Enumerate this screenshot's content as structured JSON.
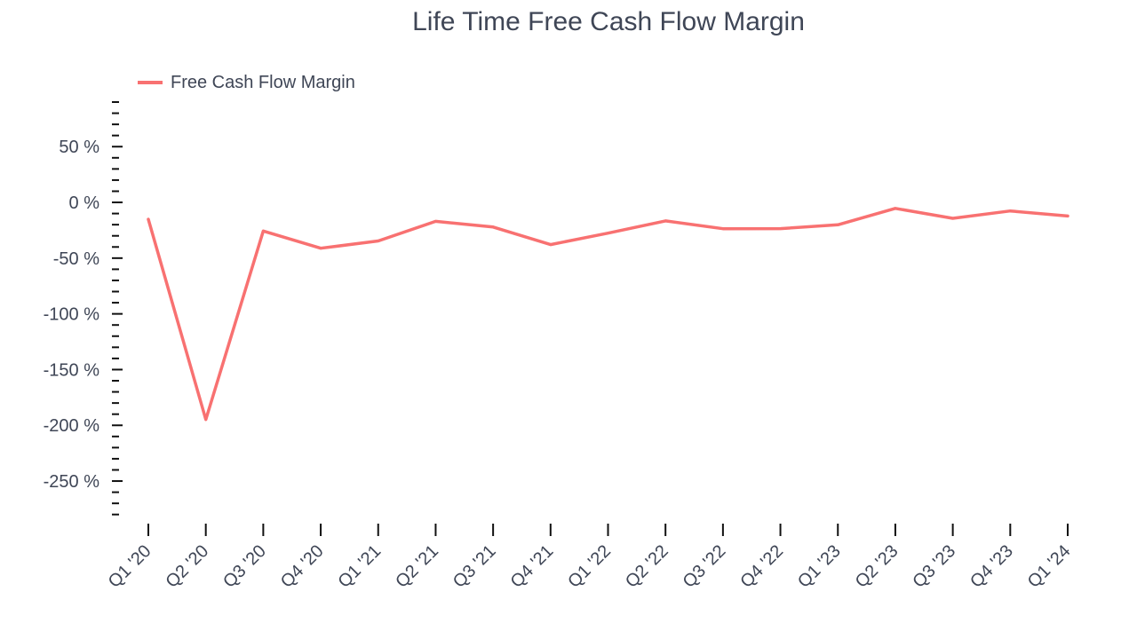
{
  "chart_data": {
    "type": "line",
    "title": "Life Time Free Cash Flow Margin",
    "xlabel": "",
    "ylabel": "",
    "categories": [
      "Q1 '20",
      "Q2 '20",
      "Q3 '20",
      "Q4 '20",
      "Q1 '21",
      "Q2 '21",
      "Q3 '21",
      "Q4 '21",
      "Q1 '22",
      "Q2 '22",
      "Q3 '22",
      "Q4 '22",
      "Q1 '23",
      "Q2 '23",
      "Q3 '23",
      "Q4 '23",
      "Q1 '24"
    ],
    "series": [
      {
        "name": "Free Cash Flow Margin",
        "color": "#f87171",
        "values": [
          -15.2,
          -194.8,
          -25.7,
          -41.1,
          -34.6,
          -17.0,
          -22.1,
          -37.9,
          -27.6,
          -16.6,
          -23.6,
          -23.5,
          -20.1,
          -5.4,
          -14.3,
          -7.7,
          -12.2
        ]
      }
    ],
    "yticks": [
      50,
      0,
      -50,
      -100,
      -150,
      -200,
      -250
    ],
    "ytick_labels": [
      "50 %",
      "0 %",
      "-50 %",
      "-100 %",
      "-150 %",
      "-200 %",
      "-250 %"
    ],
    "ylim": [
      -285,
      90
    ],
    "grid": false,
    "legend_position": "top-left"
  }
}
